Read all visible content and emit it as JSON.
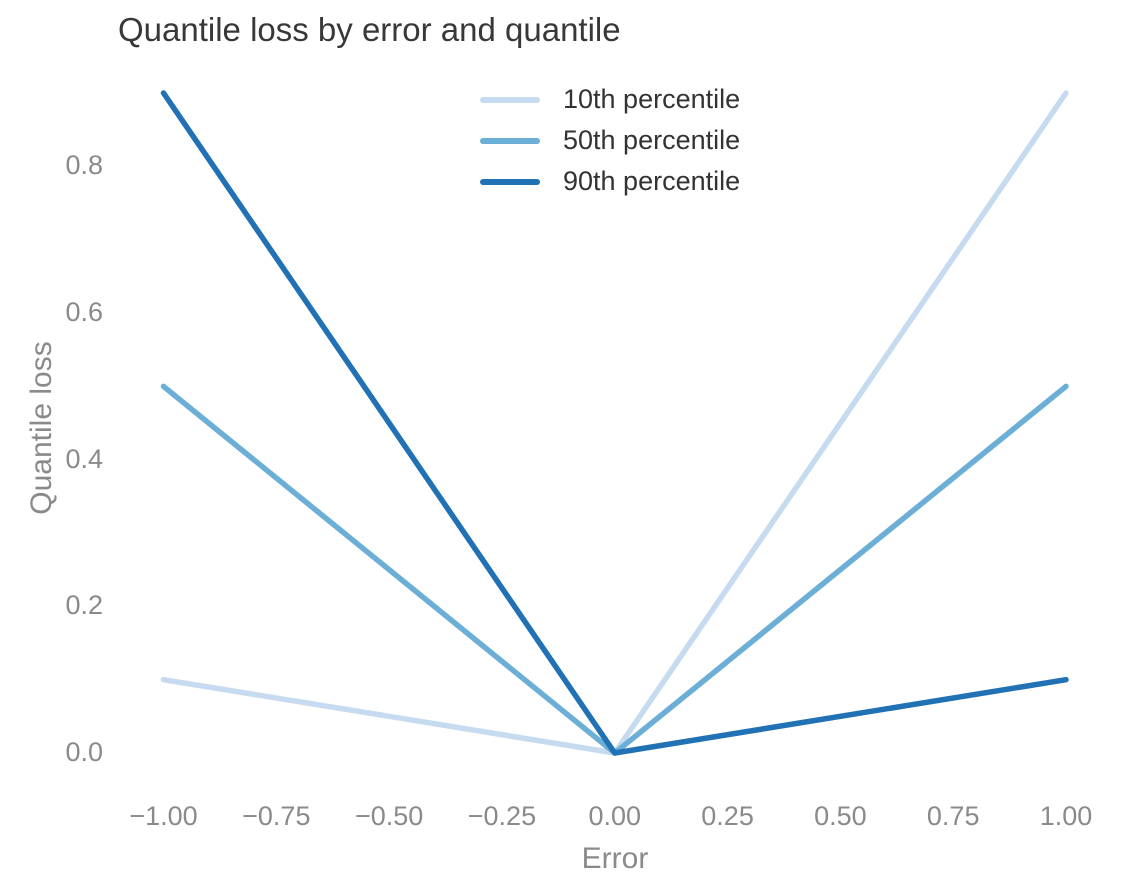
{
  "chart_data": {
    "type": "line",
    "title": "Quantile loss by error and quantile",
    "xlabel": "Error",
    "ylabel": "Quantile loss",
    "xlim": [
      -1,
      1
    ],
    "ylim": [
      0,
      0.9
    ],
    "grid": false,
    "background_color": "#ffffff",
    "tick_label_color": "#8a8a8a",
    "legend": {
      "position": "inside-top-center"
    },
    "x_ticks": [
      {
        "value": -1.0,
        "label": "−1.00"
      },
      {
        "value": -0.75,
        "label": "−0.75"
      },
      {
        "value": -0.5,
        "label": "−0.50"
      },
      {
        "value": -0.25,
        "label": "−0.25"
      },
      {
        "value": 0.0,
        "label": "0.00"
      },
      {
        "value": 0.25,
        "label": "0.25"
      },
      {
        "value": 0.5,
        "label": "0.50"
      },
      {
        "value": 0.75,
        "label": "0.75"
      },
      {
        "value": 1.0,
        "label": "1.00"
      }
    ],
    "y_ticks": [
      {
        "value": 0.0,
        "label": "0.0"
      },
      {
        "value": 0.2,
        "label": "0.2"
      },
      {
        "value": 0.4,
        "label": "0.4"
      },
      {
        "value": 0.6,
        "label": "0.6"
      },
      {
        "value": 0.8,
        "label": "0.8"
      }
    ],
    "series": [
      {
        "name": "10th percentile",
        "color": "#c6dbef",
        "points": [
          [
            -1,
            0.1
          ],
          [
            0,
            0
          ],
          [
            1,
            0.9
          ]
        ]
      },
      {
        "name": "50th percentile",
        "color": "#6baed6",
        "points": [
          [
            -1,
            0.5
          ],
          [
            0,
            0
          ],
          [
            1,
            0.5
          ]
        ]
      },
      {
        "name": "90th percentile",
        "color": "#2171b5",
        "points": [
          [
            -1,
            0.9
          ],
          [
            0,
            0
          ],
          [
            1,
            0.1
          ]
        ]
      }
    ]
  }
}
